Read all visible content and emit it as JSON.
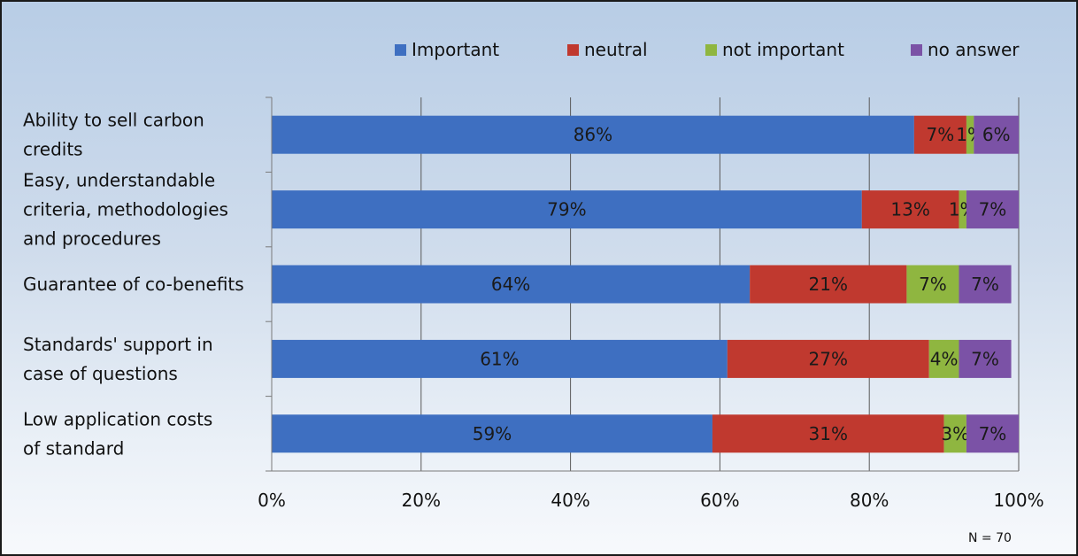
{
  "chart_data": {
    "type": "bar",
    "orientation": "horizontal",
    "stacked": "percent",
    "categories": [
      "Ability to sell carbon credits",
      "Easy, understandable criteria,  methodologies and procedures",
      "Guarantee of co-benefits",
      "Standards' support in case of questions",
      "Low application costs of standard"
    ],
    "category_label_lines": [
      [
        "Ability to sell carbon",
        "credits"
      ],
      [
        "Easy, understandable",
        "criteria,  methodologies",
        "and procedures"
      ],
      [
        "Guarantee of co-benefits"
      ],
      [
        "Standards' support in",
        "case of questions"
      ],
      [
        "Low application costs",
        "of standard"
      ]
    ],
    "series": [
      {
        "name": "Important",
        "color": "#3e6fc1",
        "values": [
          86,
          79,
          64,
          61,
          59
        ],
        "labels": [
          "86%",
          "79%",
          "64%",
          "61%",
          "59%"
        ]
      },
      {
        "name": "neutral",
        "color": "#c0392f",
        "values": [
          7,
          13,
          21,
          27,
          31
        ],
        "labels": [
          "7%",
          "13%",
          "21%",
          "27%",
          "31%"
        ]
      },
      {
        "name": "not important",
        "color": "#8fb640",
        "values": [
          1,
          1,
          7,
          4,
          3
        ],
        "labels": [
          "1%",
          "1%",
          "7%",
          "4%",
          "3%"
        ]
      },
      {
        "name": "no answer",
        "color": "#7b52a6",
        "values": [
          6,
          7,
          7,
          7,
          7
        ],
        "labels": [
          "6%",
          "7%",
          "7%",
          "7%",
          "7%"
        ]
      }
    ],
    "x_ticks": [
      "0%",
      "20%",
      "40%",
      "60%",
      "80%",
      "100%"
    ],
    "xlim": [
      0,
      100
    ],
    "grid": true,
    "legend_position": "top",
    "note": "N = 70"
  }
}
